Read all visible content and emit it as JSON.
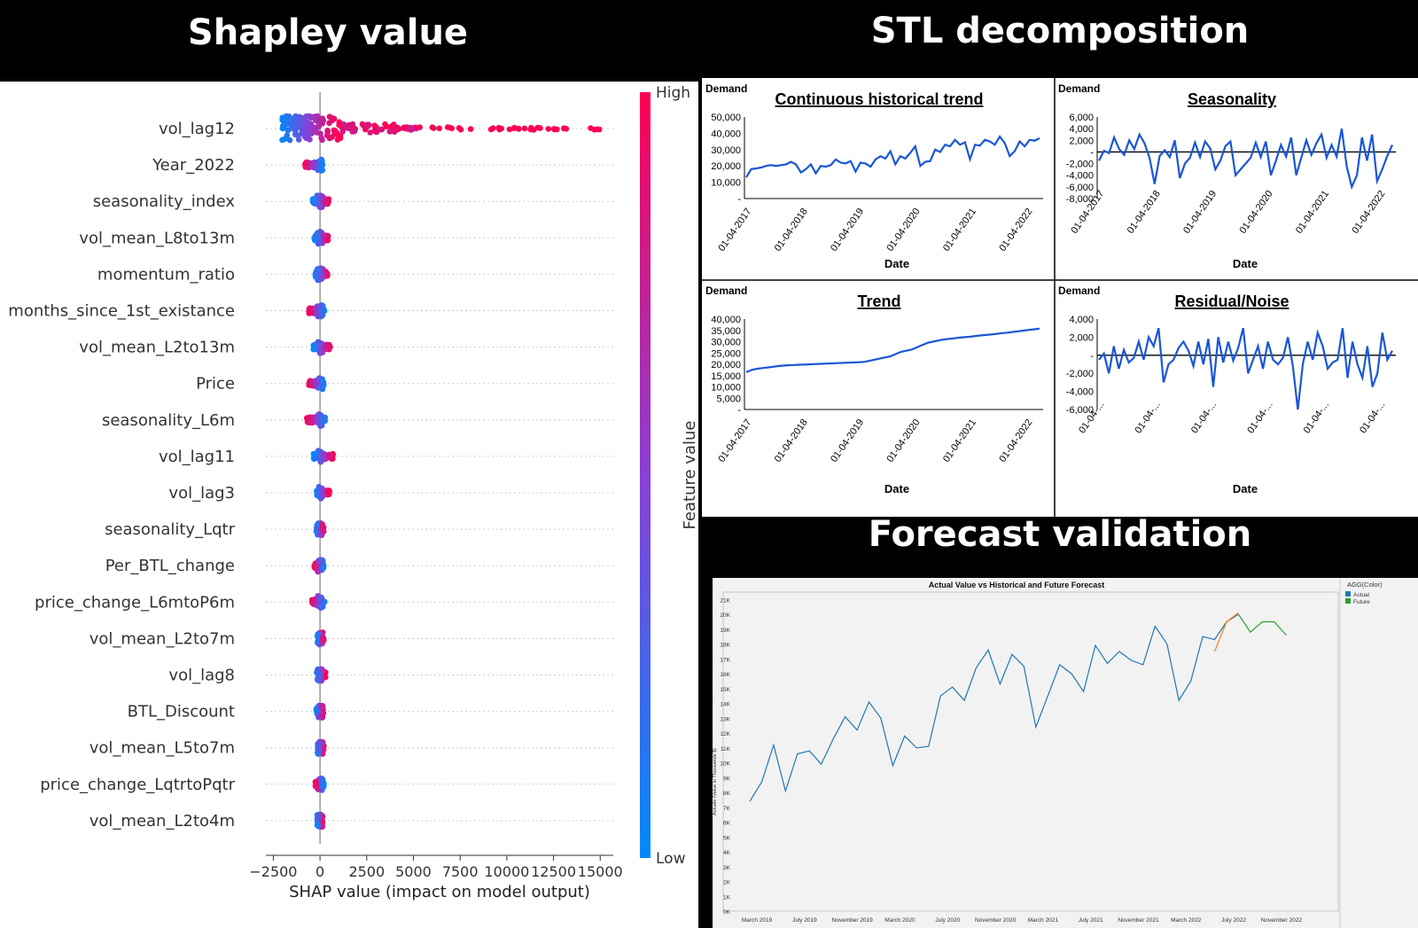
{
  "headers": {
    "shap": "Shapley value",
    "stl": "STL decomposition",
    "forecast": "Forecast validation"
  },
  "shap": {
    "xlabel": "SHAP value (impact on model output)",
    "colorbar_label": "Feature value",
    "colorbar_high": "High",
    "colorbar_low": "Low",
    "colors": {
      "high": "#ff0052",
      "low": "#008afb"
    },
    "xticks": [
      -2500,
      0,
      2500,
      5000,
      7500,
      10000,
      12500,
      15000
    ],
    "xtick_labels": [
      "−2500",
      "0",
      "2500",
      "5000",
      "7500",
      "10000",
      "12500",
      "15000"
    ],
    "xlim": [
      -2900,
      15700
    ],
    "features": [
      {
        "name": "vol_lag12",
        "lo": -2100,
        "hi": 15000
      },
      {
        "name": "Year_2022",
        "lo": -800,
        "hi": 150
      },
      {
        "name": "seasonality_index",
        "lo": -400,
        "hi": 500
      },
      {
        "name": "vol_mean_L8to13m",
        "lo": -300,
        "hi": 450
      },
      {
        "name": "momentum_ratio",
        "lo": -250,
        "hi": 400
      },
      {
        "name": "months_since_1st_existance",
        "lo": -600,
        "hi": 250
      },
      {
        "name": "vol_mean_L2to13m",
        "lo": -350,
        "hi": 550
      },
      {
        "name": "Price",
        "lo": -600,
        "hi": 200
      },
      {
        "name": "seasonality_L6m",
        "lo": -700,
        "hi": 350
      },
      {
        "name": "vol_lag11",
        "lo": -350,
        "hi": 700
      },
      {
        "name": "vol_lag3",
        "lo": -200,
        "hi": 500
      },
      {
        "name": "seasonality_Lqtr",
        "lo": -200,
        "hi": 200
      },
      {
        "name": "Per_BTL_change",
        "lo": -300,
        "hi": 200
      },
      {
        "name": "price_change_L6mtoP6m",
        "lo": -450,
        "hi": 250
      },
      {
        "name": "vol_mean_L2to7m",
        "lo": -150,
        "hi": 200
      },
      {
        "name": "vol_lag8",
        "lo": -200,
        "hi": 300
      },
      {
        "name": "BTL_Discount",
        "lo": -200,
        "hi": 200
      },
      {
        "name": "vol_mean_L5to7m",
        "lo": -150,
        "hi": 200
      },
      {
        "name": "price_change_LqtrtoPqtr",
        "lo": -250,
        "hi": 200
      },
      {
        "name": "vol_mean_L2to4m",
        "lo": -150,
        "hi": 150
      }
    ]
  },
  "stl": {
    "line_color": "#1a56d6",
    "xlabel": "Date",
    "ylabel": "Demand",
    "date_ticks": [
      "01-04-2017",
      "01-04-2018",
      "01-04-2019",
      "01-04-2020",
      "01-04-2021",
      "01-04-2022"
    ],
    "residual_ticks": [
      "01-04-...",
      "01-04-...",
      "01-04-...",
      "01-04-...",
      "01-04-...",
      "01-04-..."
    ],
    "panels": [
      {
        "title": "Continuous historical trend",
        "yticks": [
          "50,000",
          "40,000",
          "30,000",
          "20,000",
          "10,000",
          "-"
        ],
        "ylim": [
          0,
          50000
        ],
        "values": [
          13000,
          18000,
          18500,
          19000,
          20000,
          20500,
          20000,
          20500,
          21000,
          22500,
          21000,
          16000,
          18000,
          21000,
          15500,
          20000,
          19500,
          20500,
          24000,
          22000,
          21500,
          23000,
          16500,
          22000,
          21500,
          19500,
          24000,
          26000,
          24500,
          29000,
          21000,
          26000,
          24500,
          28000,
          32000,
          20000,
          22500,
          23000,
          30000,
          28500,
          33000,
          32000,
          36000,
          33000,
          34500,
          24000,
          33000,
          32500,
          36000,
          35000,
          33000,
          38000,
          34000,
          26000,
          29000,
          35000,
          32000,
          36000,
          35500,
          37000
        ]
      },
      {
        "title": "Seasonality",
        "yticks": [
          "6,000",
          "4,000",
          "2,000",
          "-",
          "-2,000",
          "-4,000",
          "-6,000",
          "-8,000"
        ],
        "ylim": [
          -8000,
          6000
        ],
        "values": [
          -1500,
          200,
          -200,
          2500,
          500,
          -500,
          2000,
          500,
          3000,
          1500,
          -1000,
          -5500,
          -700,
          300,
          -900,
          2000,
          -4500,
          -2000,
          -1000,
          1600,
          -900,
          1800,
          600,
          -3000,
          -1500,
          1000,
          1800,
          -4000,
          -3000,
          -2000,
          -1000,
          1600,
          -900,
          1800,
          -4000,
          -1500,
          1200,
          -800,
          2500,
          -4000,
          -1000,
          2000,
          -500,
          1500,
          3000,
          -1000,
          1200,
          -800,
          4000,
          -2500,
          -6000,
          -4000,
          2500,
          -1500,
          3000,
          -5000,
          -3000,
          -700,
          1200
        ]
      },
      {
        "title": "Trend",
        "yticks": [
          "40,000",
          "35,000",
          "30,000",
          "25,000",
          "20,000",
          "15,000",
          "10,000",
          "5,000",
          "-"
        ],
        "ylim": [
          0,
          40000
        ],
        "values": [
          16500,
          17500,
          18000,
          18300,
          18600,
          18900,
          19200,
          19400,
          19600,
          19700,
          19800,
          19900,
          20000,
          20100,
          20200,
          20300,
          20400,
          20500,
          20600,
          20700,
          20800,
          20900,
          21000,
          21500,
          22000,
          22500,
          23000,
          23500,
          24500,
          25500,
          26000,
          26500,
          27500,
          28500,
          29500,
          30000,
          30500,
          31000,
          31200,
          31500,
          31800,
          32000,
          32200,
          32500,
          32800,
          33000,
          33200,
          33500,
          33800,
          34000,
          34300,
          34600,
          34900,
          35200,
          35500,
          35800
        ]
      },
      {
        "title": "Residual/Noise",
        "yticks": [
          "4,000",
          "2,000",
          "-",
          "-2,000",
          "-4,000",
          "-6,000"
        ],
        "ylim": [
          -6000,
          4000
        ],
        "values": [
          -500,
          200,
          -2000,
          1000,
          -1500,
          600,
          -800,
          -300,
          1500,
          -500,
          2000,
          1000,
          3000,
          -3000,
          -1000,
          -500,
          800,
          1500,
          500,
          -1200,
          1500,
          -1000,
          1800,
          -3500,
          2000,
          -800,
          1500,
          -600,
          800,
          3000,
          -2000,
          -500,
          1000,
          -1500,
          1500,
          -500,
          -1000,
          -300,
          2000,
          -1200,
          -6000,
          -1000,
          1500,
          -500,
          2500,
          1000,
          -1500,
          -800,
          -500,
          3000,
          -2500,
          1500,
          -1000,
          -2500,
          1000,
          -3500,
          -2000,
          2500,
          -500,
          500
        ]
      }
    ]
  },
  "forecast": {
    "title": "Actual Value vs Historical and Future Forecast",
    "ylabel": "Actuals (Value in Thousands $)",
    "legend_title": "AGG(Color)",
    "legend_items": [
      {
        "label": "Actual",
        "color": "#1f77b4"
      },
      {
        "label": "Future",
        "color": "#2ca02c"
      }
    ],
    "forecast_color": "#ff7f0e",
    "yticks": [
      "0K",
      "1K",
      "2K",
      "3K",
      "4K",
      "5K",
      "6K",
      "7K",
      "8K",
      "9K",
      "10K",
      "11K",
      "12K",
      "13K",
      "14K",
      "15K",
      "16K",
      "17K",
      "18K",
      "19K",
      "20K",
      "21K"
    ],
    "xticks": [
      "March 2019",
      "July 2019",
      "November 2019",
      "March 2020",
      "July 2020",
      "November 2020",
      "March 2021",
      "July 2021",
      "November 2021",
      "March 2022",
      "July 2022",
      "November 2022"
    ],
    "actual": [
      7.4,
      8.7,
      11.2,
      8.1,
      10.6,
      10.8,
      9.9,
      11.6,
      13.1,
      12.2,
      14.1,
      13.0,
      9.8,
      11.8,
      11.0,
      11.1,
      14.5,
      15.1,
      14.2,
      16.4,
      17.6,
      15.3,
      17.3,
      16.5,
      12.4,
      14.5,
      16.6,
      16.0,
      14.8,
      17.9,
      16.7,
      17.5,
      16.9,
      16.6,
      19.2,
      18.0,
      14.2,
      15.5,
      18.5,
      18.3,
      19.5,
      20.0
    ],
    "historical_forecast": [
      17.5,
      19.5,
      20.1
    ],
    "future": [
      20.0,
      18.8,
      19.5,
      19.5,
      18.6
    ]
  }
}
